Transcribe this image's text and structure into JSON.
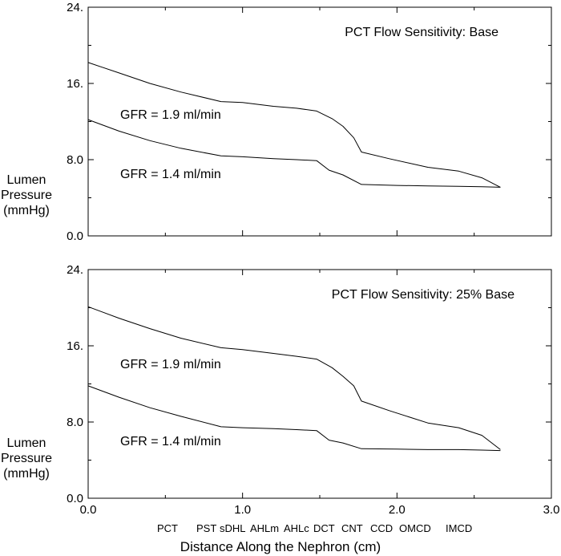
{
  "chart_data": [
    {
      "type": "line",
      "title": "PCT Flow Sensitivity: Base",
      "ylabel": [
        "Lumen",
        "Pressure",
        "(mmHg)"
      ],
      "xlabel": "",
      "ylim": [
        0,
        24
      ],
      "xlim": [
        0,
        3
      ],
      "y_ticks": [
        "0.0",
        "8.0",
        "16.",
        "24."
      ],
      "x_ticks": [],
      "series": [
        {
          "name": "GFR = 1.9 ml/min",
          "x": [
            0.0,
            0.2,
            0.4,
            0.6,
            0.86,
            1.0,
            1.2,
            1.35,
            1.48,
            1.58,
            1.65,
            1.72,
            1.77,
            1.95,
            2.2,
            2.4,
            2.55,
            2.67
          ],
          "y": [
            18.2,
            17.1,
            16.0,
            15.1,
            14.1,
            14.0,
            13.6,
            13.4,
            13.1,
            12.3,
            11.5,
            10.3,
            8.8,
            8.1,
            7.2,
            6.8,
            6.1,
            5.1
          ]
        },
        {
          "name": "GFR = 1.4 ml/min",
          "x": [
            0.0,
            0.2,
            0.4,
            0.6,
            0.86,
            1.0,
            1.2,
            1.35,
            1.48,
            1.56,
            1.65,
            1.77,
            2.0,
            2.2,
            2.4,
            2.55,
            2.67
          ],
          "y": [
            12.2,
            11.0,
            10.0,
            9.2,
            8.4,
            8.3,
            8.1,
            8.0,
            7.9,
            6.9,
            6.4,
            5.4,
            5.3,
            5.25,
            5.2,
            5.15,
            5.1
          ]
        }
      ]
    },
    {
      "type": "line",
      "title": "PCT Flow Sensitivity: 25% Base",
      "ylabel": [
        "Lumen",
        "Pressure",
        "(mmHg)"
      ],
      "xlabel": "Distance Along the Nephron (cm)",
      "ylim": [
        0,
        24
      ],
      "xlim": [
        0,
        3
      ],
      "y_ticks": [
        "0.0",
        "8.0",
        "16.",
        "24."
      ],
      "x_ticks": [
        "0.0",
        "1.0",
        "2.0",
        "3.0"
      ],
      "series": [
        {
          "name": "GFR = 1.9 ml/min",
          "x": [
            0.0,
            0.2,
            0.4,
            0.6,
            0.86,
            1.0,
            1.2,
            1.35,
            1.48,
            1.58,
            1.65,
            1.72,
            1.77,
            1.95,
            2.2,
            2.4,
            2.55,
            2.67
          ],
          "y": [
            20.1,
            18.9,
            17.8,
            16.8,
            15.8,
            15.6,
            15.2,
            14.9,
            14.6,
            13.7,
            12.8,
            11.8,
            10.2,
            9.2,
            7.9,
            7.4,
            6.6,
            5.1
          ]
        },
        {
          "name": "GFR = 1.4 ml/min",
          "x": [
            0.0,
            0.2,
            0.4,
            0.6,
            0.86,
            1.0,
            1.2,
            1.35,
            1.48,
            1.56,
            1.65,
            1.77,
            2.0,
            2.2,
            2.4,
            2.55,
            2.67
          ],
          "y": [
            11.8,
            10.6,
            9.5,
            8.6,
            7.5,
            7.4,
            7.3,
            7.2,
            7.1,
            6.1,
            5.8,
            5.2,
            5.15,
            5.1,
            5.1,
            5.05,
            5.0
          ]
        }
      ]
    }
  ],
  "segment_labels": [
    "PCT",
    "PST",
    "sDHL",
    "AHLm",
    "AHLc",
    "DCT",
    "CNT",
    "CCD",
    "OMCD",
    "IMCD"
  ]
}
